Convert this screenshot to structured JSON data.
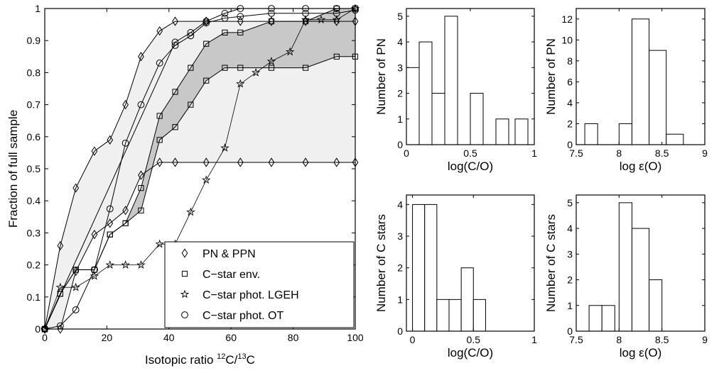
{
  "chart_data": [
    {
      "type": "line",
      "xlabel_text": "Isotopic ratio",
      "xlabel_sup1": "12",
      "xlabel_mid": "C/",
      "xlabel_sup2": "13",
      "xlabel_end": "C",
      "ylabel": "Fraction of full sample",
      "xlim": [
        0,
        100
      ],
      "ylim": [
        0,
        1
      ],
      "xticks": [
        0,
        20,
        40,
        60,
        80,
        100
      ],
      "yticks": [
        0,
        0.1,
        0.2,
        0.3,
        0.4,
        0.5,
        0.6,
        0.7,
        0.8,
        0.9,
        1
      ],
      "ytick_labels": [
        "0",
        "0.1",
        "0.2",
        "0.3",
        "0.4",
        "0.5",
        "0.6",
        "0.7",
        "0.8",
        "0.9",
        "1"
      ],
      "grid": false,
      "legend_position": "bottom-right",
      "bands": [
        {
          "fill": "#f0f0f0",
          "upper_series": "PN & PPN upper",
          "lower_series": "PN & PPN lower"
        },
        {
          "fill": "#c8c8c8",
          "upper_series": "C-star env. upper",
          "lower_series": "C-star env. lower"
        }
      ],
      "series": [
        {
          "key": "PN & PPN upper",
          "marker": "diamond",
          "legend_index": 0,
          "x": [
            0,
            5,
            10,
            16,
            21,
            26,
            31,
            37,
            42,
            52,
            63,
            73,
            84,
            94,
            100
          ],
          "y": [
            0,
            0.26,
            0.44,
            0.555,
            0.59,
            0.7,
            0.85,
            0.93,
            0.96,
            0.96,
            0.96,
            0.96,
            0.96,
            0.96,
            0.96
          ]
        },
        {
          "key": "PN & PPN lower",
          "marker": "diamond",
          "legend_index": null,
          "x": [
            0,
            5,
            10,
            16,
            21,
            26,
            31,
            37,
            42,
            52,
            63,
            73,
            84,
            94,
            100
          ],
          "y": [
            0,
            0,
            0.18,
            0.295,
            0.33,
            0.37,
            0.48,
            0.52,
            0.52,
            0.52,
            0.52,
            0.52,
            0.52,
            0.52,
            0.52
          ]
        },
        {
          "key": "C-star env. upper",
          "marker": "square",
          "legend_index": null,
          "x": [
            0,
            5,
            10,
            16,
            21,
            26,
            31,
            37,
            42,
            47,
            52,
            58,
            63,
            73,
            84,
            94,
            100
          ],
          "y": [
            0,
            0.11,
            0.185,
            0.185,
            0.295,
            0.33,
            0.44,
            0.665,
            0.74,
            0.815,
            0.89,
            0.925,
            0.925,
            0.96,
            0.96,
            1,
            1
          ]
        },
        {
          "key": "C-star env. lower",
          "marker": "square",
          "legend_index": 1,
          "x": [
            0,
            5,
            10,
            16,
            21,
            26,
            31,
            37,
            42,
            47,
            52,
            58,
            63,
            73,
            84,
            94,
            100
          ],
          "y": [
            0,
            0.11,
            0.185,
            0.185,
            0.295,
            0.33,
            0.37,
            0.59,
            0.63,
            0.7,
            0.775,
            0.815,
            0.815,
            0.815,
            0.815,
            0.85,
            0.85
          ]
        },
        {
          "key": "C-star phot. LGEH",
          "marker": "star",
          "legend_index": 2,
          "x": [
            0,
            5,
            10,
            16,
            21,
            26,
            31,
            37,
            42,
            47,
            52,
            58,
            63,
            68,
            73,
            79,
            84,
            89,
            94,
            100
          ],
          "y": [
            0,
            0.13,
            0.13,
            0.165,
            0.2,
            0.2,
            0.2,
            0.265,
            0.265,
            0.365,
            0.465,
            0.565,
            0.765,
            0.8,
            0.835,
            0.865,
            0.965,
            0.965,
            0.965,
            1
          ]
        },
        {
          "key": "C-star phot. OT",
          "marker": "circle",
          "legend_index": 3,
          "x": [
            0,
            5,
            10,
            16,
            21,
            26,
            31,
            37,
            42,
            47,
            52,
            58,
            63,
            73,
            84,
            94,
            100
          ],
          "y": [
            0,
            0.01,
            0.06,
            0.185,
            0.375,
            0.58,
            0.7,
            0.83,
            0.885,
            0.915,
            0.955,
            0.97,
            0.975,
            0.985,
            0.985,
            0.985,
            0.995
          ]
        },
        {
          "key": "C-star phot. OT b",
          "marker": "circle",
          "legend_index": null,
          "x": [
            0,
            42,
            47,
            52,
            58,
            63,
            73,
            84,
            94,
            100
          ],
          "y": [
            0,
            0.895,
            0.925,
            0.96,
            0.985,
            1,
            1,
            1,
            1,
            1
          ]
        }
      ],
      "legend": [
        {
          "marker": "diamond",
          "label": "PN & PPN"
        },
        {
          "marker": "square",
          "label": "C−star env."
        },
        {
          "marker": "star",
          "label": "C−star phot. LGEH"
        },
        {
          "marker": "circle",
          "label": "C−star phot. OT"
        }
      ]
    },
    {
      "type": "bar",
      "xlabel": "log(C/O)",
      "ylabel": "Number of PN",
      "xlim": [
        0,
        1
      ],
      "ylim": [
        0,
        5.3
      ],
      "xticks": [
        0,
        0.5,
        1
      ],
      "xtick_labels": [
        "0",
        "0.5",
        "1"
      ],
      "yticks": [
        0,
        1,
        2,
        3,
        4,
        5
      ],
      "bins": [
        [
          0,
          0.1
        ],
        [
          0.1,
          0.2
        ],
        [
          0.2,
          0.3
        ],
        [
          0.3,
          0.4
        ],
        [
          0.5,
          0.6
        ],
        [
          0.7,
          0.8
        ],
        [
          0.85,
          0.95
        ]
      ],
      "values": [
        3,
        4,
        2,
        5,
        2,
        1,
        1
      ]
    },
    {
      "type": "bar",
      "xlabel": "log ε(O)",
      "ylabel": "Number of PN",
      "xlim": [
        7.5,
        9
      ],
      "ylim": [
        0,
        13
      ],
      "xticks": [
        7.5,
        8,
        8.5,
        9
      ],
      "xtick_labels": [
        "7.5",
        "8",
        "8.5",
        "9"
      ],
      "yticks": [
        0,
        2,
        4,
        6,
        8,
        10,
        12
      ],
      "bins": [
        [
          7.6,
          7.75
        ],
        [
          8.0,
          8.15
        ],
        [
          8.15,
          8.35
        ],
        [
          8.35,
          8.55
        ],
        [
          8.55,
          8.75
        ]
      ],
      "values": [
        2,
        2,
        12,
        9,
        1
      ]
    },
    {
      "type": "bar",
      "xlabel": "log(C/O)",
      "ylabel": "Number of C stars",
      "xlim": [
        -0.05,
        1
      ],
      "ylim": [
        0,
        4.3
      ],
      "xticks": [
        0,
        0.5,
        1
      ],
      "xtick_labels": [
        "0",
        "0.5",
        "1"
      ],
      "yticks": [
        0,
        1,
        2,
        3,
        4
      ],
      "bins": [
        [
          0,
          0.1
        ],
        [
          0.1,
          0.2
        ],
        [
          0.2,
          0.3
        ],
        [
          0.3,
          0.4
        ],
        [
          0.4,
          0.5
        ],
        [
          0.5,
          0.6
        ]
      ],
      "values": [
        4,
        4,
        1,
        1,
        2,
        1
      ]
    },
    {
      "type": "bar",
      "xlabel": "log ε(O)",
      "ylabel": "Number of C stars",
      "xlim": [
        7.5,
        9
      ],
      "ylim": [
        0,
        5.3
      ],
      "xticks": [
        7.5,
        8,
        8.5,
        9
      ],
      "xtick_labels": [
        "7.5",
        "8",
        "8.5",
        "9"
      ],
      "yticks": [
        0,
        1,
        2,
        3,
        4,
        5
      ],
      "bins": [
        [
          7.65,
          7.8
        ],
        [
          7.8,
          7.95
        ],
        [
          8.0,
          8.15
        ],
        [
          8.15,
          8.35
        ],
        [
          8.35,
          8.5
        ]
      ],
      "values": [
        1,
        1,
        5,
        4,
        2
      ]
    }
  ]
}
